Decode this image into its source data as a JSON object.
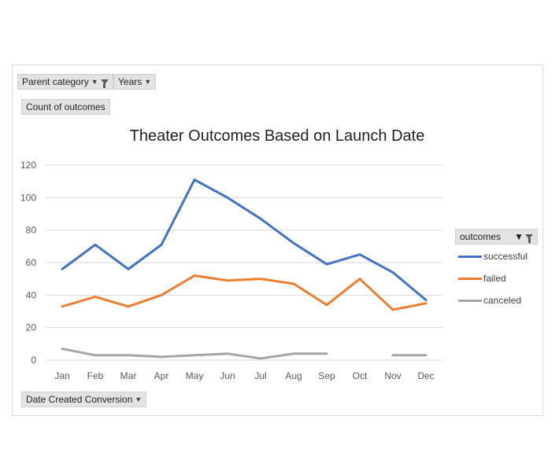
{
  "filters": {
    "parent_category": "Parent category",
    "years": "Years",
    "count": "Count of outcomes",
    "date_field": "Date Created Conversion"
  },
  "legend": {
    "header": "outcomes"
  },
  "chart_data": {
    "type": "line",
    "title": "Theater Outcomes Based on Launch Date",
    "categories": [
      "Jan",
      "Feb",
      "Mar",
      "Apr",
      "May",
      "Jun",
      "Jul",
      "Aug",
      "Sep",
      "Oct",
      "Nov",
      "Dec"
    ],
    "yticks": [
      0,
      20,
      40,
      60,
      80,
      100,
      120
    ],
    "ylim": [
      0,
      120
    ],
    "grid": true,
    "legend_position": "right",
    "series": [
      {
        "name": "successful",
        "color": "#4472c4",
        "values": [
          56,
          71,
          56,
          71,
          111,
          100,
          87,
          72,
          59,
          65,
          54,
          37
        ]
      },
      {
        "name": "failed",
        "color": "#ed7d31",
        "values": [
          33,
          39,
          33,
          40,
          52,
          49,
          50,
          47,
          34,
          50,
          31,
          35
        ]
      },
      {
        "name": "canceled",
        "color": "#a5a5a5",
        "values": [
          7,
          3,
          3,
          2,
          3,
          4,
          1,
          4,
          4,
          null,
          3,
          3
        ]
      }
    ]
  }
}
